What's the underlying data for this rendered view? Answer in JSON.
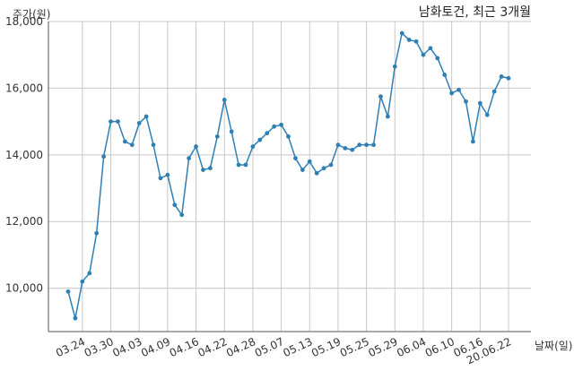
{
  "chart_data": {
    "type": "line",
    "title": "남화토건, 최근 3개월",
    "ylabel": "주가(원)",
    "xlabel": "날짜(일)",
    "x": [
      "03.20",
      "03.23",
      "03.24",
      "03.25",
      "03.26",
      "03.27",
      "03.30",
      "03.31",
      "04.01",
      "04.02",
      "04.03",
      "04.06",
      "04.07",
      "04.08",
      "04.09",
      "04.10",
      "04.13",
      "04.14",
      "04.16",
      "04.17",
      "04.20",
      "04.21",
      "04.22",
      "04.23",
      "04.24",
      "04.27",
      "04.28",
      "04.29",
      "05.04",
      "05.06",
      "05.07",
      "05.08",
      "05.11",
      "05.12",
      "05.13",
      "05.14",
      "05.15",
      "05.18",
      "05.19",
      "05.20",
      "05.21",
      "05.22",
      "05.25",
      "05.26",
      "05.27",
      "05.28",
      "05.29",
      "06.01",
      "06.02",
      "06.03",
      "06.04",
      "06.05",
      "06.08",
      "06.09",
      "06.10",
      "06.11",
      "06.12",
      "06.15",
      "06.16",
      "06.17",
      "06.18",
      "06.19",
      "06.22"
    ],
    "xtick_labels": [
      "03.24",
      "03.30",
      "04.03",
      "04.09",
      "04.16",
      "04.22",
      "04.28",
      "05.07",
      "05.13",
      "05.19",
      "05.25",
      "05.29",
      "06.04",
      "06.10",
      "06.16",
      "20.06.22"
    ],
    "ytick_labels": [
      "10,000",
      "12,000",
      "14,000",
      "16,000",
      "18,000"
    ],
    "yticks": [
      10000,
      12000,
      14000,
      16000,
      18000
    ],
    "ylim": [
      8700,
      18000
    ],
    "grid": true,
    "color": "#2f7fb5",
    "series": [
      {
        "values": [
          9900,
          9100,
          10200,
          10450,
          11650,
          13950,
          15000,
          15000,
          14400,
          14300,
          14950,
          15150,
          14300,
          13300,
          13400,
          12500,
          12200,
          13900,
          14250,
          13550,
          13600,
          14550,
          15650,
          14700,
          13700,
          13700,
          14250,
          14450,
          14650,
          14850,
          14900,
          14550,
          13900,
          13550,
          13800,
          13450,
          13600,
          13700,
          14300,
          14200,
          14150,
          14300,
          14300,
          14300,
          15750,
          15150,
          16650,
          17650,
          17450,
          17400,
          17000,
          17200,
          16900,
          16400,
          15850,
          15950,
          15600,
          14400,
          15550,
          15200,
          15900,
          16350,
          16300
        ]
      }
    ]
  }
}
